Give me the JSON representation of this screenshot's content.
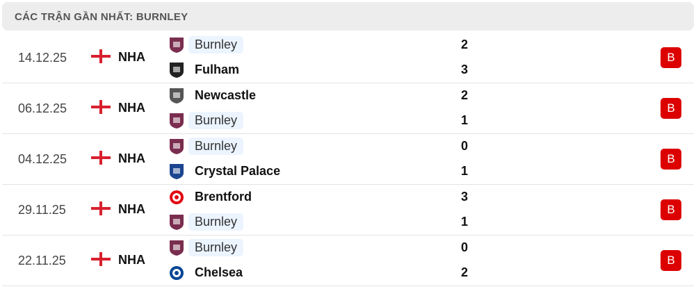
{
  "header": {
    "title": "CÁC TRẬN GẦN NHẤT: BURNLEY"
  },
  "colors": {
    "loss": "#dc0000",
    "highlight": "#ebf4ff",
    "flag": "#d8202f"
  },
  "matches": [
    {
      "date": "14.12.25",
      "country": "NHA",
      "flag_icon": "england-flag-icon",
      "result": "B",
      "home": {
        "name": "Burnley",
        "score": "2",
        "logo": "burnley-crest-icon",
        "color": "#7a2e4f",
        "focus": true
      },
      "away": {
        "name": "Fulham",
        "score": "3",
        "logo": "fulham-crest-icon",
        "color": "#222",
        "focus": false
      }
    },
    {
      "date": "06.12.25",
      "country": "NHA",
      "flag_icon": "england-flag-icon",
      "result": "B",
      "home": {
        "name": "Newcastle",
        "score": "2",
        "logo": "newcastle-crest-icon",
        "color": "#555",
        "focus": false
      },
      "away": {
        "name": "Burnley",
        "score": "1",
        "logo": "burnley-crest-icon",
        "color": "#7a2e4f",
        "focus": true
      }
    },
    {
      "date": "04.12.25",
      "country": "NHA",
      "flag_icon": "england-flag-icon",
      "result": "B",
      "home": {
        "name": "Burnley",
        "score": "0",
        "logo": "burnley-crest-icon",
        "color": "#7a2e4f",
        "focus": true
      },
      "away": {
        "name": "Crystal Palace",
        "score": "1",
        "logo": "crystal-palace-crest-icon",
        "color": "#1b458f",
        "focus": false
      }
    },
    {
      "date": "29.11.25",
      "country": "NHA",
      "flag_icon": "england-flag-icon",
      "result": "B",
      "home": {
        "name": "Brentford",
        "score": "3",
        "logo": "brentford-crest-icon",
        "color": "#e30613",
        "focus": false
      },
      "away": {
        "name": "Burnley",
        "score": "1",
        "logo": "burnley-crest-icon",
        "color": "#7a2e4f",
        "focus": true
      }
    },
    {
      "date": "22.11.25",
      "country": "NHA",
      "flag_icon": "england-flag-icon",
      "result": "B",
      "home": {
        "name": "Burnley",
        "score": "0",
        "logo": "burnley-crest-icon",
        "color": "#7a2e4f",
        "focus": true
      },
      "away": {
        "name": "Chelsea",
        "score": "2",
        "logo": "chelsea-crest-icon",
        "color": "#034694",
        "focus": false
      }
    }
  ]
}
